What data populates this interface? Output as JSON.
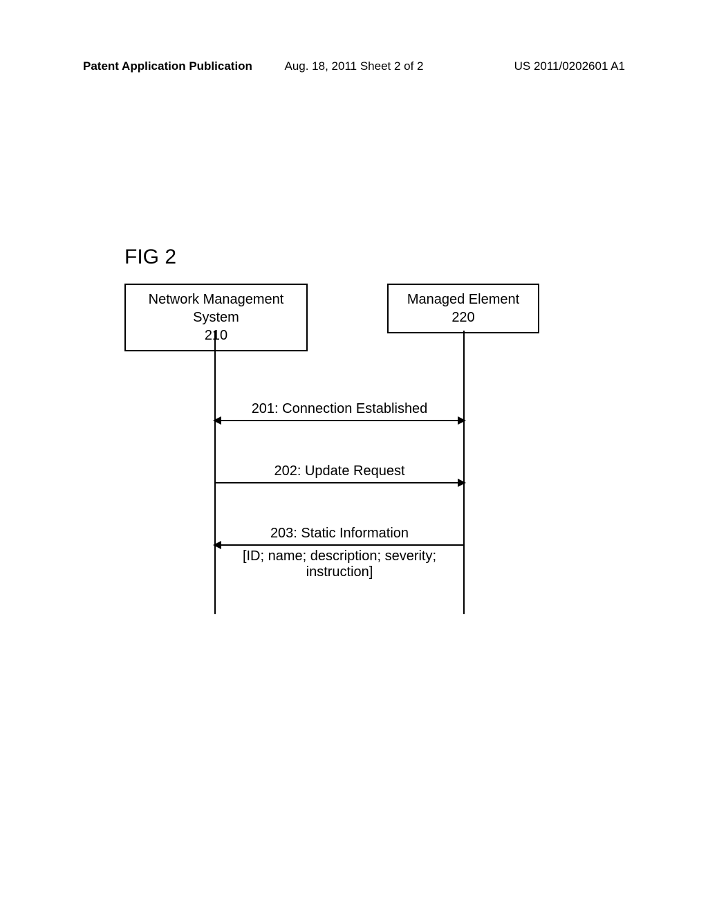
{
  "header": {
    "left": "Patent Application Publication",
    "center": "Aug. 18, 2011  Sheet 2 of 2",
    "right": "US 2011/0202601 A1"
  },
  "figure_label": "FIG 2",
  "diagram": {
    "type": "sequence",
    "background_color": "#ffffff",
    "line_color": "#000000",
    "text_color": "#000000",
    "box_left": {
      "title": "Network Management System",
      "number": "210"
    },
    "box_right": {
      "title": "Managed Element",
      "number": "220"
    },
    "messages": [
      {
        "label": "201: Connection Established",
        "direction": "both"
      },
      {
        "label": "202: Update Request",
        "direction": "right"
      },
      {
        "label": "203: Static Information",
        "sublabel": "[ID; name; description; severity; instruction]",
        "direction": "left"
      }
    ]
  }
}
